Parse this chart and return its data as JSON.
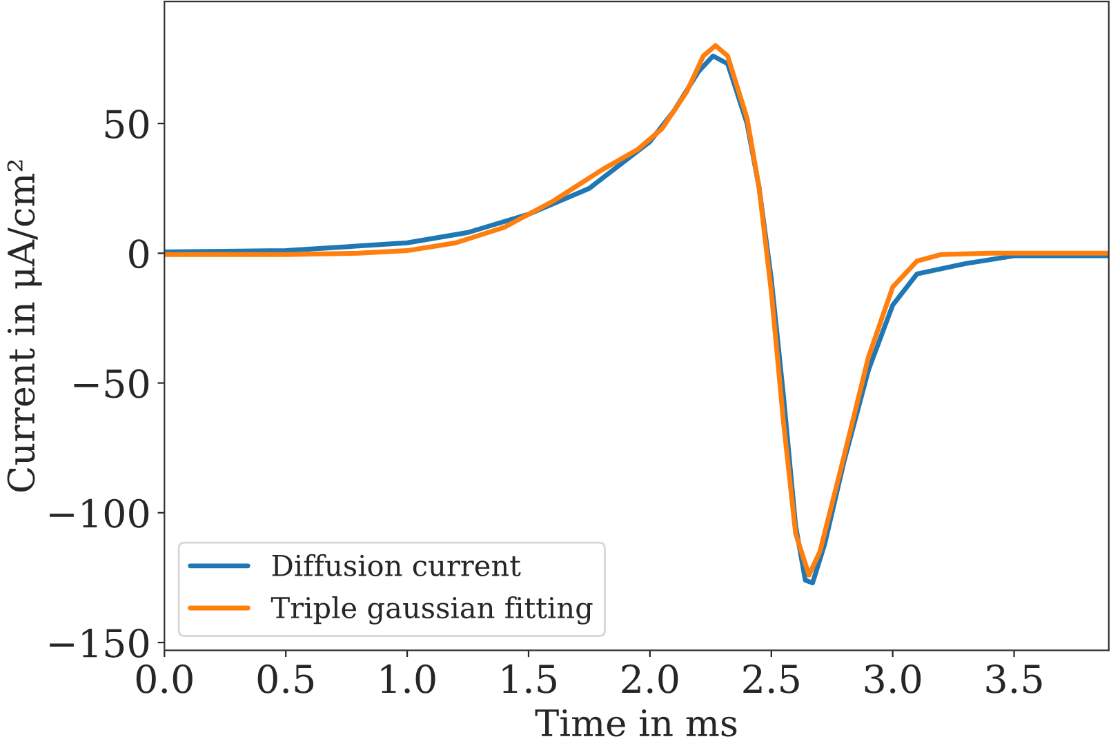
{
  "chart_data": {
    "type": "line",
    "xlabel": "Time in ms",
    "ylabel": "Current in μA/cm²",
    "xlim": [
      0,
      3.89
    ],
    "ylim": [
      -153,
      97
    ],
    "xticks": [
      {
        "value": 0,
        "label": "0.0"
      },
      0.5,
      {
        "value": 1,
        "label": "1.0"
      },
      1.5,
      {
        "value": 2,
        "label": "2.0"
      },
      2.5,
      {
        "value": 3,
        "label": "3.0"
      },
      3.5
    ],
    "yticks": [
      {
        "value": -150,
        "label": "−150"
      },
      {
        "value": -100,
        "label": "−100"
      },
      {
        "value": -50,
        "label": "−50"
      },
      0,
      50
    ],
    "grid": false,
    "legend": "bottom left",
    "line_style": "solid",
    "marker": "none",
    "series": [
      {
        "name": "Diffusion current",
        "color": "#1f77b4",
        "x": [
          0,
          0.5,
          1.0,
          1.25,
          1.5,
          1.75,
          2.0,
          2.1,
          2.2,
          2.26,
          2.32,
          2.4,
          2.45,
          2.5,
          2.55,
          2.6,
          2.64,
          2.67,
          2.72,
          2.8,
          2.9,
          3.0,
          3.1,
          3.2,
          3.3,
          3.5,
          3.89
        ],
        "values": [
          0.5,
          1,
          4,
          8,
          15,
          25,
          43,
          55,
          70,
          76,
          73,
          50,
          25,
          -10,
          -55,
          -105,
          -126,
          -127,
          -112,
          -80,
          -45,
          -20,
          -8,
          -6,
          -4,
          -1,
          -1
        ]
      },
      {
        "name": "Triple gaussian fitting",
        "color": "#ff7f0e",
        "x": [
          0,
          0.5,
          0.8,
          1.0,
          1.2,
          1.4,
          1.6,
          1.8,
          1.95,
          2.05,
          2.15,
          2.22,
          2.27,
          2.32,
          2.4,
          2.45,
          2.5,
          2.55,
          2.6,
          2.655,
          2.7,
          2.8,
          2.9,
          3.0,
          3.1,
          3.2,
          3.4,
          3.89
        ],
        "values": [
          -0.5,
          -0.5,
          0,
          1,
          4,
          10,
          20,
          32,
          40,
          48,
          62,
          76,
          80,
          76,
          52,
          25,
          -15,
          -65,
          -108,
          -124,
          -115,
          -78,
          -40,
          -13,
          -3,
          -0.5,
          0,
          0
        ]
      }
    ]
  }
}
